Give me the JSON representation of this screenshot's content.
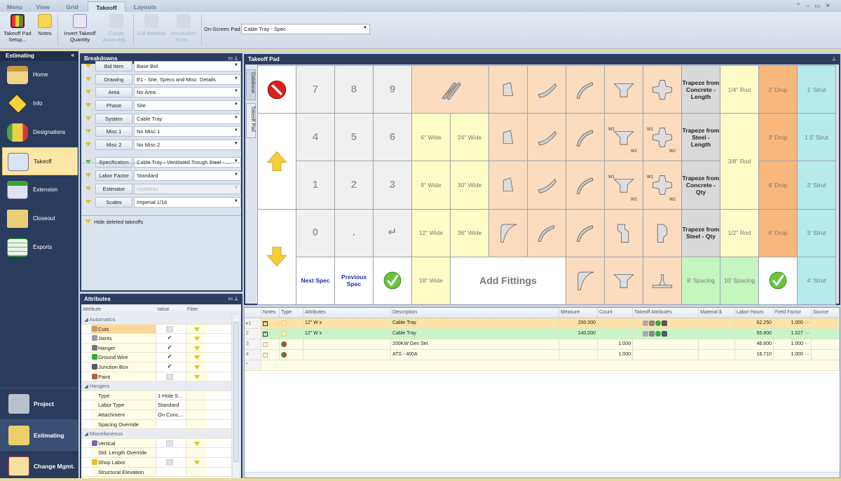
{
  "ribbon_tabs": [
    "Menu",
    "View",
    "Grid",
    "Takeoff",
    "Layouts"
  ],
  "active_tab": "Takeoff",
  "ribbon": {
    "takeoff_pad_setup": "Takeoff Pad Setup...",
    "notes": "Notes",
    "invert_takeoff": "Invert Takeoff Quantity",
    "create_assembly": "Create Assembly...",
    "full_resolve": "Full Resolve",
    "resolution_error": "Resolution Error...",
    "on_screen_pad_label": "On-Screen Pad",
    "on_screen_pad_value": "Cable Tray - Spec"
  },
  "nav": {
    "title": "Estimating",
    "items": [
      "Home",
      "Info",
      "Designations",
      "Takeoff",
      "Extension",
      "Closeout",
      "Exports"
    ],
    "selected": "Takeoff",
    "bottom": [
      "Project",
      "Estimating",
      "Change Mgmt."
    ]
  },
  "breakdowns": {
    "title": "Breakdowns",
    "rows": [
      {
        "label": "Bid Item",
        "value": "Base Bid"
      },
      {
        "label": "Drawing",
        "value": "E1 - Site, Specs and Misc. Details"
      },
      {
        "label": "Area",
        "value": "No Area"
      },
      {
        "label": "Phase",
        "value": "Site"
      },
      {
        "label": "System",
        "value": "Cable Tray"
      },
      {
        "label": "Misc 1",
        "value": "No Misc 1"
      },
      {
        "label": "Misc 2",
        "value": "No Misc 2"
      },
      {
        "label": "Specification",
        "value": "Cable Tray - Ventilated Trough Steel - ..."
      },
      {
        "label": "Labor Factor",
        "value": "Standard"
      },
      {
        "label": "Estimator",
        "value": "myatteau"
      },
      {
        "label": "Scales",
        "value": "Imperial 1/16"
      }
    ],
    "hide_deleted": "Hide deleted takeoffs"
  },
  "attributes": {
    "title": "Attributes",
    "columns": [
      "Attribute",
      "Value",
      "Filter"
    ],
    "groups": [
      "Automatics",
      "Hangers",
      "Miscellaneous"
    ],
    "automatics": [
      {
        "name": "Cuts",
        "checked": false
      },
      {
        "name": "Joints",
        "checked": true
      },
      {
        "name": "Hanger",
        "checked": true
      },
      {
        "name": "Ground Wire",
        "checked": true
      },
      {
        "name": "Junction Box",
        "checked": true
      },
      {
        "name": "Paint",
        "checked": false
      }
    ],
    "hangers": [
      {
        "name": "Type",
        "value": "1-Hole S..."
      },
      {
        "name": "Labor Type",
        "value": "Standard"
      },
      {
        "name": "Attachment",
        "value": "On Conc..."
      },
      {
        "name": "Spacing Override",
        "value": ""
      }
    ],
    "misc": [
      {
        "name": "Vertical",
        "checked": false
      },
      {
        "name": "Std. Length Override",
        "value": ""
      },
      {
        "name": "Shop Labor",
        "checked": false
      },
      {
        "name": "Structural Elevation",
        "value": ""
      }
    ],
    "check_mark": "✓"
  },
  "pad": {
    "title": "Takeoff Pad",
    "side_tabs": [
      "Database",
      "Takeoff Pad"
    ],
    "digits": [
      "7",
      "8",
      "9",
      "4",
      "5",
      "6",
      "1",
      "2",
      "3",
      "0",
      "."
    ],
    "enter": "↵",
    "widths": [
      "6\" Wide",
      "24\" Wide",
      "9\" Wide",
      "30\" Wide",
      "12\" Wide",
      "36\" Wide",
      "18\" Wide"
    ],
    "trapeze": [
      "Trapeze from Concrete - Length",
      "Trapeze from Steel - Length",
      "Trapeze from Concrete - Qty",
      "Trapeze from Steel - Qty"
    ],
    "rods": [
      "1/4\" Rod",
      "3/8\" Rod",
      "1/2\" Rod"
    ],
    "drops": [
      "2' Drop",
      "3' Drop",
      "4' Drop",
      "6' Drop"
    ],
    "struts": [
      "1' Strut",
      "1.5' Strut",
      "2' Strut",
      "3' Strut",
      "4' Strut"
    ],
    "spacings": [
      "8' Spacing",
      "10' Spacing"
    ],
    "next_spec": "Next Spec",
    "previous_spec": "Previous Spec",
    "add_fittings": "Add Fittings",
    "w1": "W1",
    "w2": "W2"
  },
  "table": {
    "columns": [
      "Notes",
      "Type",
      "Attributes",
      "Description",
      "Measure",
      "Count",
      "Takeoff Attributes",
      "Material $",
      "Labor Hours",
      "Field Factor",
      "Source"
    ],
    "rows": [
      {
        "num": "1",
        "attributes": "12\" W x",
        "description": "Cable Tray",
        "measure": "200.000",
        "count": "",
        "labor_hours": "62.250",
        "field_factor": "1.000",
        "selected": true
      },
      {
        "num": "2",
        "attributes": "12\" W x",
        "description": "Cable Tray",
        "measure": "140.000",
        "count": "",
        "labor_hours": "55.800",
        "field_factor": "1.027"
      },
      {
        "num": "3",
        "attributes": "",
        "description": "200KW Gen Set",
        "measure": "",
        "count": "1.000",
        "labor_hours": "46.800",
        "field_factor": "1.000"
      },
      {
        "num": "4",
        "attributes": "",
        "description": "ATS - 400A",
        "measure": "",
        "count": "1.000",
        "labor_hours": "16.710",
        "field_factor": "1.000"
      }
    ],
    "new_row": "*",
    "ellipsis": "···"
  },
  "colors": {
    "nav": "#2a3c5e",
    "selected_nav": "#fde7a6",
    "pad_peach": "#fcdcbf",
    "pad_yellow": "#fefcc6",
    "pad_orange": "#f9b77d",
    "pad_cyan": "#b7ebeb",
    "pad_green": "#c5f6c0",
    "row_selected": "#fde3a7",
    "row_green": "#c8f5c8"
  }
}
